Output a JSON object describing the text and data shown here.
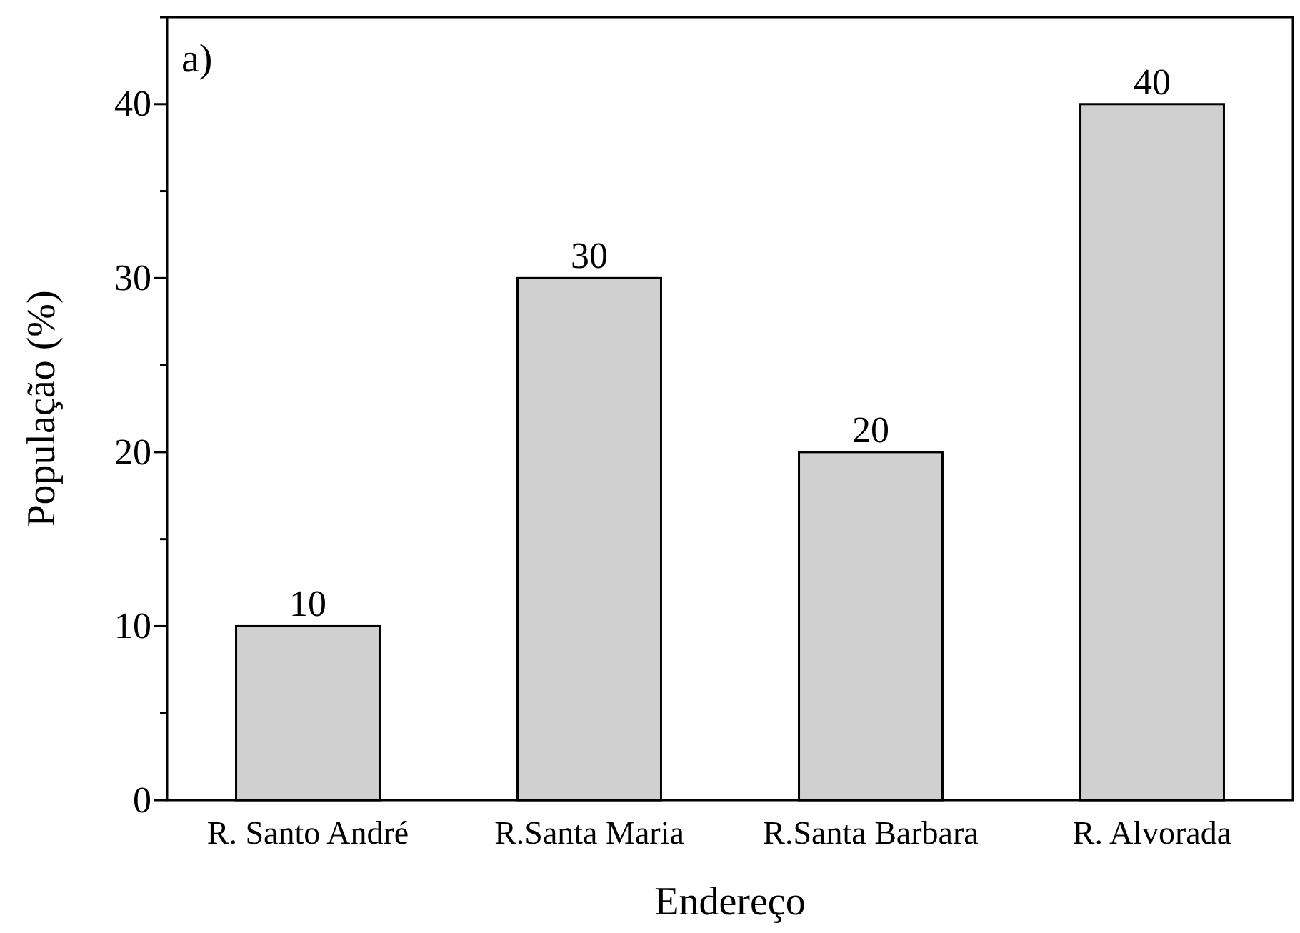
{
  "chart_data": {
    "type": "bar",
    "categories": [
      "R. Santo André",
      "R.Santa Maria",
      "R.Santa Barbara",
      "R. Alvorada"
    ],
    "values": [
      10,
      30,
      20,
      40
    ],
    "color": "#d0d0d0",
    "xlabel": "Endereço",
    "ylabel": "População (%)",
    "ylim": [
      0,
      45
    ],
    "yticks": [
      0,
      {
        "value": 5,
        "label": null
      },
      10,
      {
        "value": 15,
        "label": null
      },
      20,
      {
        "value": 25,
        "label": null
      },
      30,
      {
        "value": 35,
        "label": null
      },
      40,
      {
        "value": 45,
        "label": null
      }
    ],
    "data_labels": true,
    "annotations": [
      "a)"
    ]
  }
}
